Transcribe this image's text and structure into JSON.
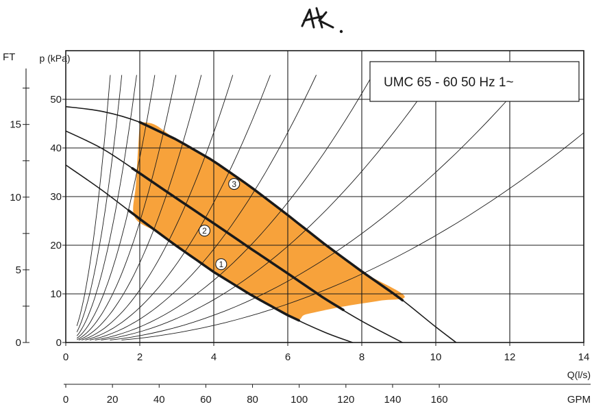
{
  "logo": {
    "text": "AK",
    "kind": "handwritten-mark"
  },
  "chart_data": {
    "type": "line",
    "title": "UMC 65 - 60 50 Hz 1~",
    "xlabel": "Q(l/s)",
    "xlabel_secondary": "GPM",
    "ylabel": "p (kPa)",
    "ylabel_secondary": "FT",
    "xlim": [
      0,
      14
    ],
    "ylim": [
      0,
      55
    ],
    "x_ticks": [
      0,
      2,
      4,
      6,
      8,
      10,
      12,
      14
    ],
    "y_ticks": [
      0,
      10,
      20,
      30,
      40,
      50
    ],
    "ft_ticks": [
      0,
      5,
      10,
      15
    ],
    "gpm_ticks": [
      0,
      20,
      40,
      60,
      80,
      100,
      120,
      140,
      160
    ],
    "grid": true,
    "legend": "none",
    "colors": {
      "operating_area": "#f7a23b",
      "lines": "#1a1a1a",
      "background": "#ffffff"
    },
    "series": [
      {
        "name": "1",
        "x": [
          0,
          1,
          2,
          3,
          4,
          5,
          6,
          7,
          7.75
        ],
        "y": [
          36.5,
          31.2,
          25.4,
          19.8,
          14.5,
          9.8,
          5.6,
          2.1,
          0
        ]
      },
      {
        "name": "2",
        "x": [
          0,
          1,
          2,
          3,
          4,
          5,
          6,
          7,
          8,
          9.1
        ],
        "y": [
          43.5,
          39.8,
          34.8,
          29.6,
          24.5,
          19.3,
          14.2,
          9.0,
          4.4,
          0
        ]
      },
      {
        "name": "3",
        "x": [
          0,
          1,
          2,
          3,
          4,
          5,
          6,
          7,
          8,
          9,
          10,
          10.55
        ],
        "y": [
          48.5,
          47.5,
          45.3,
          41.7,
          37.3,
          32.0,
          26.2,
          20.2,
          14.6,
          9.3,
          3.2,
          0
        ]
      }
    ],
    "operating_area": {
      "x": [
        2.0,
        2.4,
        3,
        4,
        5,
        5.5,
        6,
        7,
        8,
        9.15,
        8.5,
        7.5,
        6.5,
        6.2,
        5,
        4,
        3,
        2.4,
        1.85,
        1.9,
        2.0
      ],
      "y": [
        45.3,
        44.8,
        41.7,
        37.3,
        32.0,
        29.1,
        26.2,
        20.2,
        14.6,
        9.6,
        8.6,
        7.4,
        5.8,
        5.0,
        9.8,
        14.5,
        19.8,
        22.9,
        26.0,
        33.0,
        45.3
      ]
    },
    "curve_labels": [
      "1",
      "2",
      "3"
    ]
  }
}
